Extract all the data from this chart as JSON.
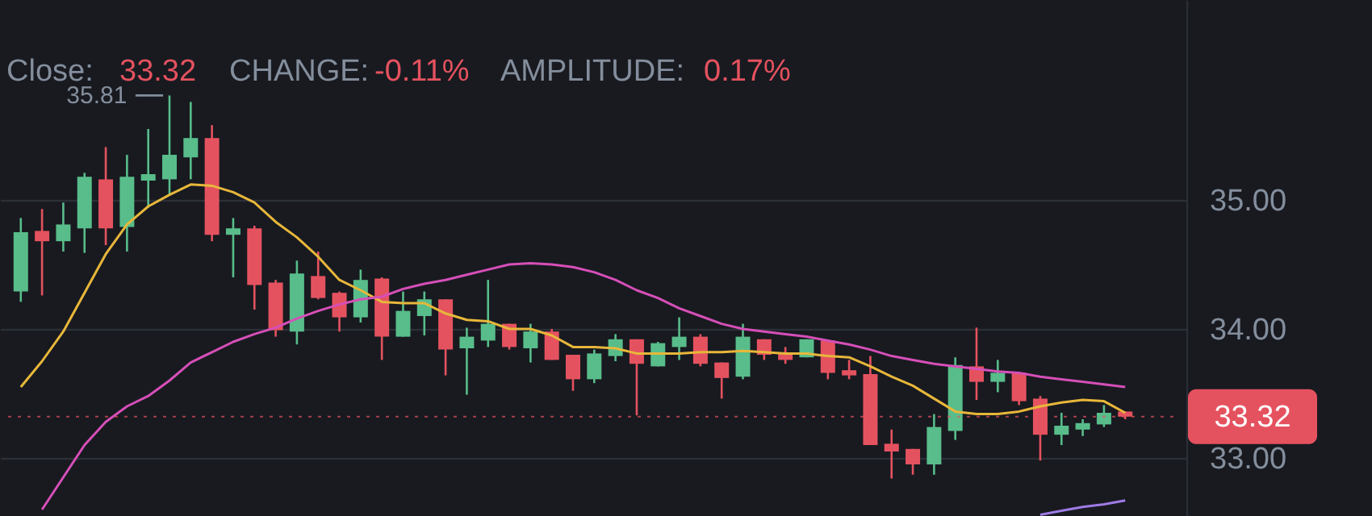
{
  "chart_data": {
    "type": "candlestick",
    "categories": [
      null,
      null,
      null,
      null,
      null,
      null,
      null,
      null,
      null,
      null,
      null,
      null,
      null,
      null,
      null,
      null,
      null,
      null,
      null,
      null,
      null,
      null,
      null,
      null,
      null,
      null,
      null,
      null,
      null,
      null,
      null,
      null,
      null,
      null,
      null,
      null,
      null,
      null,
      null,
      null,
      null,
      null,
      null,
      null,
      null,
      null,
      null,
      null,
      null,
      null,
      null,
      null,
      null
    ],
    "ohlc": [
      [
        34.29,
        34.86,
        34.21,
        34.75
      ],
      [
        34.76,
        34.93,
        34.26,
        34.68
      ],
      [
        34.68,
        34.98,
        34.6,
        34.81
      ],
      [
        34.78,
        35.21,
        34.59,
        35.18
      ],
      [
        35.16,
        35.41,
        34.65,
        34.78
      ],
      [
        34.79,
        35.35,
        34.6,
        35.18
      ],
      [
        35.15,
        35.55,
        34.94,
        35.2
      ],
      [
        35.16,
        35.81,
        35.04,
        35.35
      ],
      [
        35.33,
        35.76,
        35.16,
        35.48
      ],
      [
        35.48,
        35.58,
        34.68,
        34.73
      ],
      [
        34.73,
        34.86,
        34.4,
        34.78
      ],
      [
        34.78,
        34.8,
        34.15,
        34.34
      ],
      [
        34.36,
        34.38,
        33.94,
        33.99
      ],
      [
        33.98,
        34.53,
        33.88,
        34.43
      ],
      [
        34.41,
        34.6,
        34.23,
        34.24
      ],
      [
        34.28,
        34.29,
        33.98,
        34.09
      ],
      [
        34.09,
        34.46,
        34.05,
        34.38
      ],
      [
        34.39,
        34.4,
        33.76,
        33.94
      ],
      [
        33.94,
        34.29,
        33.94,
        34.14
      ],
      [
        34.1,
        34.29,
        33.95,
        34.23
      ],
      [
        34.23,
        34.23,
        33.64,
        33.84
      ],
      [
        33.85,
        34.01,
        33.49,
        33.94
      ],
      [
        33.91,
        34.38,
        33.86,
        34.04
      ],
      [
        34.04,
        34.04,
        33.84,
        33.86
      ],
      [
        33.85,
        34.04,
        33.74,
        33.98
      ],
      [
        33.98,
        34.0,
        33.76,
        33.76
      ],
      [
        33.8,
        33.8,
        33.52,
        33.61
      ],
      [
        33.61,
        33.84,
        33.58,
        33.81
      ],
      [
        33.79,
        33.96,
        33.75,
        33.92
      ],
      [
        33.92,
        33.92,
        33.33,
        33.73
      ],
      [
        33.71,
        33.9,
        33.71,
        33.89
      ],
      [
        33.86,
        34.09,
        33.76,
        33.94
      ],
      [
        33.94,
        33.96,
        33.71,
        33.73
      ],
      [
        33.74,
        33.74,
        33.46,
        33.62
      ],
      [
        33.63,
        34.04,
        33.61,
        33.94
      ],
      [
        33.92,
        33.92,
        33.76,
        33.8
      ],
      [
        33.81,
        33.86,
        33.73,
        33.76
      ],
      [
        33.78,
        33.92,
        33.78,
        33.92
      ],
      [
        33.91,
        33.91,
        33.61,
        33.66
      ],
      [
        33.68,
        33.76,
        33.61,
        33.64
      ],
      [
        33.65,
        33.79,
        33.1,
        33.1
      ],
      [
        33.11,
        33.22,
        32.84,
        33.05
      ],
      [
        33.07,
        33.07,
        32.87,
        32.95
      ],
      [
        32.95,
        33.34,
        32.87,
        33.24
      ],
      [
        33.21,
        33.78,
        33.14,
        33.72
      ],
      [
        33.71,
        34.01,
        33.45,
        33.59
      ],
      [
        33.59,
        33.76,
        33.51,
        33.66
      ],
      [
        33.66,
        33.66,
        33.41,
        33.44
      ],
      [
        33.46,
        33.48,
        32.98,
        33.18
      ],
      [
        33.18,
        33.35,
        33.1,
        33.25
      ],
      [
        33.22,
        33.3,
        33.17,
        33.27
      ],
      [
        33.26,
        33.41,
        33.24,
        33.35
      ],
      [
        33.36,
        33.36,
        33.3,
        33.32
      ]
    ],
    "colors": [
      "#58bd8a",
      "#e5525f",
      "#58bd8a",
      "#58bd8a",
      "#e5525f",
      "#58bd8a",
      "#58bd8a",
      "#58bd8a",
      "#58bd8a",
      "#e5525f",
      "#58bd8a",
      "#e5525f",
      "#e5525f",
      "#58bd8a",
      "#e5525f",
      "#e5525f",
      "#58bd8a",
      "#e5525f",
      "#58bd8a",
      "#58bd8a",
      "#e5525f",
      "#58bd8a",
      "#58bd8a",
      "#e5525f",
      "#58bd8a",
      "#e5525f",
      "#e5525f",
      "#58bd8a",
      "#58bd8a",
      "#e5525f",
      "#58bd8a",
      "#58bd8a",
      "#e5525f",
      "#e5525f",
      "#58bd8a",
      "#e5525f",
      "#e5525f",
      "#58bd8a",
      "#e5525f",
      "#e5525f",
      "#e5525f",
      "#e5525f",
      "#e5525f",
      "#58bd8a",
      "#58bd8a",
      "#e5525f",
      "#58bd8a",
      "#e5525f",
      "#e5525f",
      "#58bd8a",
      "#58bd8a",
      "#58bd8a",
      "#e5525f"
    ],
    "series": [
      {
        "type": "line",
        "color": "#e8b73a",
        "values": [
          33.55,
          33.75,
          33.98,
          34.28,
          34.58,
          34.81,
          34.95,
          35.04,
          35.12,
          35.11,
          35.06,
          34.98,
          34.83,
          34.71,
          34.56,
          34.38,
          34.3,
          34.21,
          34.2,
          34.2,
          34.12,
          34.07,
          34.06,
          34.0,
          34.0,
          33.95,
          33.86,
          33.86,
          33.85,
          33.81,
          33.81,
          33.81,
          33.82,
          33.82,
          33.83,
          33.82,
          33.81,
          33.81,
          33.79,
          33.78,
          33.71,
          33.63,
          33.56,
          33.46,
          33.36,
          33.34,
          33.34,
          33.36,
          33.4,
          33.43,
          33.45,
          33.44,
          33.35
        ]
      },
      {
        "type": "line",
        "color": "#d64fb8",
        "values": [
          null,
          32.6,
          32.85,
          33.1,
          33.28,
          33.4,
          33.48,
          33.6,
          33.74,
          33.82,
          33.9,
          33.96,
          34.01,
          34.08,
          34.14,
          34.19,
          34.23,
          34.25,
          34.31,
          34.35,
          34.38,
          34.42,
          34.46,
          34.5,
          34.51,
          34.5,
          34.48,
          34.44,
          34.38,
          34.3,
          34.24,
          34.16,
          34.1,
          34.04,
          34.0,
          33.98,
          33.96,
          33.94,
          33.91,
          33.88,
          33.84,
          33.79,
          33.76,
          33.73,
          33.71,
          33.69,
          33.67,
          33.66,
          33.63,
          33.61,
          33.59,
          33.57,
          33.55
        ]
      },
      {
        "type": "line",
        "color": "#9f7be6",
        "values": [
          null,
          null,
          null,
          null,
          null,
          null,
          null,
          null,
          null,
          null,
          null,
          null,
          null,
          null,
          null,
          null,
          null,
          null,
          null,
          null,
          null,
          null,
          null,
          null,
          null,
          null,
          null,
          null,
          null,
          null,
          null,
          null,
          null,
          null,
          null,
          null,
          null,
          null,
          null,
          null,
          null,
          null,
          null,
          null,
          null,
          null,
          null,
          null,
          32.56,
          32.59,
          32.62,
          32.64,
          32.67
        ]
      }
    ],
    "ylim": [
      32.55,
      36.55
    ],
    "yticks": [
      {
        "value": 33,
        "label": "33.00"
      },
      {
        "value": 34,
        "label": "34.00"
      },
      {
        "value": 35,
        "label": "35.00"
      }
    ],
    "tick_labels": "y",
    "grid": true,
    "marker": "none",
    "line_style": "solid",
    "ref_lines": [
      {
        "axis": "y",
        "value": 33.32,
        "label": "33.32",
        "color": "#e5525f"
      }
    ],
    "annotations": [
      "Close:",
      "33.32",
      "CHANGE:",
      "-0.11%",
      "AMPLITUDE:",
      "0.17%",
      "35.81"
    ]
  }
}
